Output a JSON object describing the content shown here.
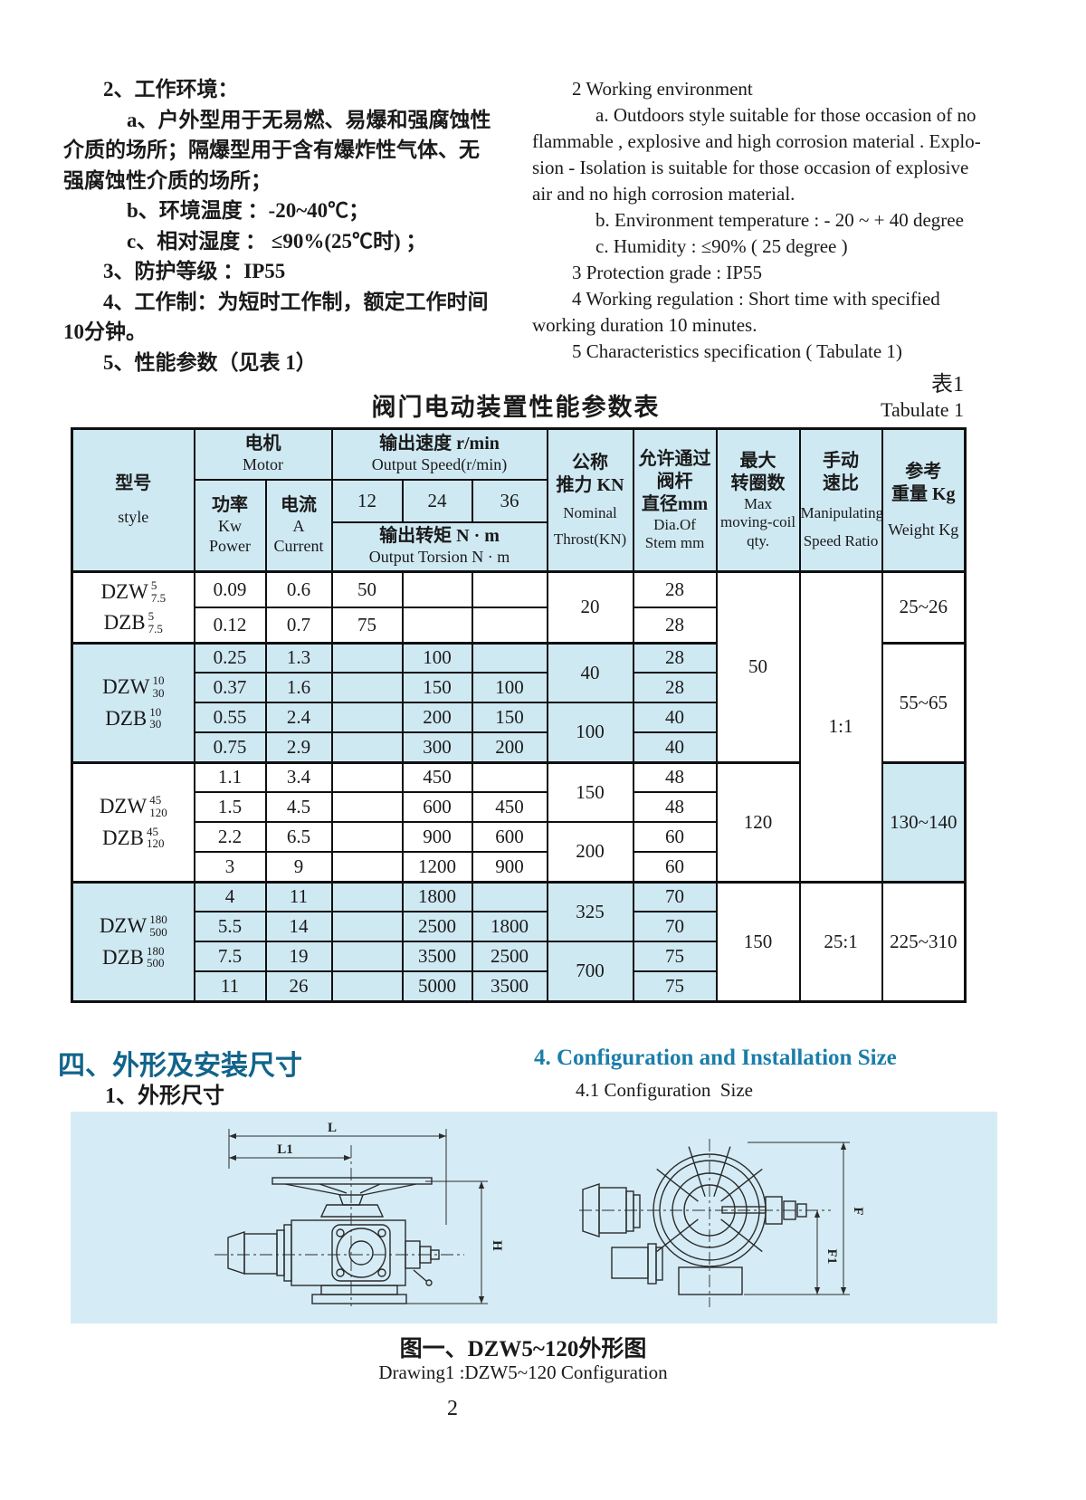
{
  "colors": {
    "cell_blue": "#cfe9f3",
    "panel_blue": "#d5ecf6",
    "heading_zh": "#11648a",
    "heading_en": "#1b7eaa"
  },
  "page": {
    "number": "2"
  },
  "intro": {
    "zh_lines": [
      {
        "indent": 1,
        "text": "2、工作环境："
      },
      {
        "indent": 2,
        "text": "a、户外型用于无易燃、易爆和强腐蚀性"
      },
      {
        "indent": 0,
        "text": "介质的场所；隔爆型用于含有爆炸性气体、无"
      },
      {
        "indent": 0,
        "text": "强腐蚀性介质的场所；"
      },
      {
        "indent": 2,
        "text": "b、环境温度 ：-20~40℃；"
      },
      {
        "indent": 2,
        "text": "c、相对湿度 ： ≤90%(25℃时) ；"
      },
      {
        "indent": 1,
        "text": "3、防护等级 ：IP55"
      },
      {
        "indent": 1,
        "text": "4、工作制：为短时工作制，额定工作时间"
      },
      {
        "indent": 0,
        "text": "10分钟。"
      },
      {
        "indent": 1,
        "text": "5、性能参数（见表 1）"
      }
    ],
    "en_lines": [
      {
        "indent": 1,
        "text": "2 Working environment"
      },
      {
        "indent": 2,
        "text": "a. Outdoors style suitable for those occasion of no"
      },
      {
        "indent": 0,
        "text": "flammable , explosive and high corrosion material . Explo-"
      },
      {
        "indent": 0,
        "text": "sion - Isolation is suitable for those occasion of explosive"
      },
      {
        "indent": 0,
        "text": "air and no high corrosion material."
      },
      {
        "indent": 2,
        "text": "b. Environment temperature : - 20 ~ + 40 degree"
      },
      {
        "indent": 2,
        "text": "c. Humidity : ≤90% ( 25 degree )"
      },
      {
        "indent": 1,
        "text": "3 Protection grade : IP55"
      },
      {
        "indent": 1,
        "text": "4 Working regulation : Short time with specified"
      },
      {
        "indent": 0,
        "text": "working duration 10 minutes."
      },
      {
        "indent": 1,
        "text": "5 Characteristics specification ( Tabulate 1)"
      }
    ]
  },
  "table": {
    "title": "阀门电动装置性能参数表",
    "label_zh": "表1",
    "label_en": "Tabulate 1",
    "header": {
      "style_zh": "型号",
      "style_en": "style",
      "motor_zh": "电机",
      "motor_en": "Motor",
      "speed_zh": "输出速度  r/min",
      "speed_en": "Output Speed(r/min)",
      "col12": "12",
      "col24": "24",
      "col36": "36",
      "torsion_zh": "输出转矩  N · m",
      "torsion_en": "Output Torsion N · m",
      "power_zh": "功率",
      "power_u": "Kw",
      "power_en": "Power",
      "current_zh": "电流",
      "current_u": "A",
      "current_en": "Current",
      "thrust_zh1": "公称",
      "thrust_zh2": "推力 KN",
      "thrust_en1": "Nominal",
      "thrust_en2": "Throst(KN)",
      "stem_zh1": "允许通过",
      "stem_zh2": "阀杆",
      "stem_zh3": "直径mm",
      "stem_en1": "Dia.Of",
      "stem_en2": "Stem mm",
      "qty_zh1": "最大",
      "qty_zh2": "转圈数",
      "qty_en1": "Max",
      "qty_en2": "moving-coil",
      "qty_en3": "qty.",
      "ratio_zh1": "手动",
      "ratio_zh2": "速比",
      "ratio_en1": "Manipulating",
      "ratio_en2": "Speed Ratio",
      "weight_zh1": "参考",
      "weight_zh2": "重量 Kg",
      "weight_en": "Weight Kg"
    },
    "style_cells": [
      {
        "row": 0,
        "rows": 2,
        "blue": false,
        "models": [
          [
            "DZW",
            "5",
            "7.5"
          ],
          [
            "DZB",
            "5",
            "7.5"
          ]
        ]
      },
      {
        "row": 2,
        "rows": 4,
        "blue": true,
        "models": [
          [
            "DZW",
            "10",
            "30"
          ],
          [
            "DZB",
            "10",
            "30"
          ]
        ]
      },
      {
        "row": 6,
        "rows": 4,
        "blue": false,
        "models": [
          [
            "DZW",
            "45",
            "120"
          ],
          [
            "DZB",
            "45",
            "120"
          ]
        ]
      },
      {
        "row": 10,
        "rows": 4,
        "blue": true,
        "models": [
          [
            "DZW",
            "180",
            "500"
          ],
          [
            "DZB",
            "180",
            "500"
          ]
        ]
      }
    ],
    "thrust_cells": [
      {
        "row": 0,
        "rows": 2,
        "v": "20",
        "blue": false
      },
      {
        "row": 2,
        "rows": 2,
        "v": "40",
        "blue": true
      },
      {
        "row": 4,
        "rows": 2,
        "v": "100",
        "blue": true
      },
      {
        "row": 6,
        "rows": 2,
        "v": "150",
        "blue": false
      },
      {
        "row": 8,
        "rows": 2,
        "v": "200",
        "blue": false
      },
      {
        "row": 10,
        "rows": 2,
        "v": "325",
        "blue": true
      },
      {
        "row": 12,
        "rows": 2,
        "v": "700",
        "blue": true
      }
    ],
    "qty_cells": [
      {
        "row": 0,
        "rows": 6,
        "v": "50",
        "blue": false
      },
      {
        "row": 6,
        "rows": 4,
        "v": "120",
        "blue": false
      },
      {
        "row": 10,
        "rows": 4,
        "v": "150",
        "blue": false
      }
    ],
    "ratio_cells": [
      {
        "row": 0,
        "rows": 10,
        "v": "1:1",
        "blue": false
      },
      {
        "row": 10,
        "rows": 4,
        "v": "25:1",
        "blue": false
      }
    ],
    "weight_cells": [
      {
        "row": 0,
        "rows": 2,
        "v": "25~26",
        "blue": false
      },
      {
        "row": 2,
        "rows": 4,
        "v": "55~65",
        "blue": false
      },
      {
        "row": 6,
        "rows": 4,
        "v": "130~140",
        "blue": true
      },
      {
        "row": 10,
        "rows": 4,
        "v": "225~310",
        "blue": false
      }
    ],
    "rows": [
      {
        "power": "0.09",
        "current": "0.6",
        "s12": "50",
        "s24": "",
        "s36": "",
        "stem": "28",
        "blue": false
      },
      {
        "power": "0.12",
        "current": "0.7",
        "s12": "75",
        "s24": "",
        "s36": "",
        "stem": "28",
        "blue": false
      },
      {
        "power": "0.25",
        "current": "1.3",
        "s12": "",
        "s24": "100",
        "s36": "",
        "stem": "28",
        "blue": true
      },
      {
        "power": "0.37",
        "current": "1.6",
        "s12": "",
        "s24": "150",
        "s36": "100",
        "stem": "28",
        "blue": true
      },
      {
        "power": "0.55",
        "current": "2.4",
        "s12": "",
        "s24": "200",
        "s36": "150",
        "stem": "40",
        "blue": true
      },
      {
        "power": "0.75",
        "current": "2.9",
        "s12": "",
        "s24": "300",
        "s36": "200",
        "stem": "40",
        "blue": true
      },
      {
        "power": "1.1",
        "current": "3.4",
        "s12": "",
        "s24": "450",
        "s36": "",
        "stem": "48",
        "blue": false
      },
      {
        "power": "1.5",
        "current": "4.5",
        "s12": "",
        "s24": "600",
        "s36": "450",
        "stem": "48",
        "blue": false
      },
      {
        "power": "2.2",
        "current": "6.5",
        "s12": "",
        "s24": "900",
        "s36": "600",
        "stem": "60",
        "blue": false
      },
      {
        "power": "3",
        "current": "9",
        "s12": "",
        "s24": "1200",
        "s36": "900",
        "stem": "60",
        "blue": false
      },
      {
        "power": "4",
        "current": "11",
        "s12": "",
        "s24": "1800",
        "s36": "",
        "stem": "70",
        "blue": true
      },
      {
        "power": "5.5",
        "current": "14",
        "s12": "",
        "s24": "2500",
        "s36": "1800",
        "stem": "70",
        "blue": true
      },
      {
        "power": "7.5",
        "current": "19",
        "s12": "",
        "s24": "3500",
        "s36": "2500",
        "stem": "75",
        "blue": true
      },
      {
        "power": "11",
        "current": "26",
        "s12": "",
        "s24": "5000",
        "s36": "3500",
        "stem": "75",
        "blue": true
      }
    ]
  },
  "section4": {
    "zh_heading": "四、外形及安装尺寸",
    "en_heading": "4. Configuration and Installation Size",
    "zh_sub": "1、外形尺寸",
    "en_sub": "4.1 Configuration  Size"
  },
  "drawing": {
    "caption_zh": "图一、DZW5~120外形图",
    "caption_en": "Drawing1 :DZW5~120 Configuration",
    "dim_labels": {
      "L": "L",
      "L1": "L1",
      "H": "H",
      "F": "F",
      "F1": "F1"
    }
  }
}
